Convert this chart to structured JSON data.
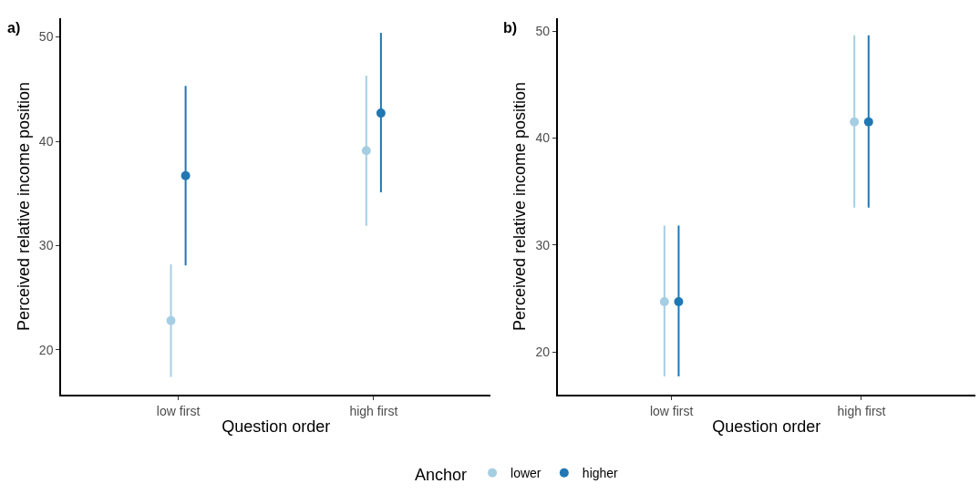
{
  "chart_data": [
    {
      "type": "scatter",
      "title": "a)",
      "xlabel": "Question order",
      "ylabel": "Perceived relative income position",
      "legend_title": "Anchor",
      "categories": [
        "low first",
        "high first"
      ],
      "ylim": [
        15.7,
        51.8
      ],
      "yticks": [
        20,
        30,
        40,
        50
      ],
      "grid": false,
      "legend": "bottom",
      "marker": "circle",
      "series": [
        {
          "name": "lower",
          "color": "#a6cee3",
          "values": [
            22.8,
            39.1
          ],
          "errors": [
            [
              17.4,
              28.2
            ],
            [
              31.9,
              46.3
            ]
          ]
        },
        {
          "name": "higher",
          "color": "#1f78b4",
          "values": [
            36.7,
            42.7
          ],
          "errors": [
            [
              28.1,
              45.3
            ],
            [
              35.1,
              50.4
            ]
          ]
        }
      ]
    },
    {
      "type": "scatter",
      "title": "b)",
      "xlabel": "Question order",
      "ylabel": "Perceived relative income position",
      "categories": [
        "low first",
        "high first"
      ],
      "ylim": [
        16.0,
        51.2
      ],
      "yticks": [
        20,
        30,
        40,
        50
      ],
      "grid": false,
      "legend": "bottom",
      "marker": "circle",
      "series": [
        {
          "name": "lower",
          "color": "#a6cee3",
          "values": [
            24.7,
            41.5
          ],
          "errors": [
            [
              17.7,
              31.8
            ],
            [
              33.5,
              49.6
            ]
          ]
        },
        {
          "name": "higher",
          "color": "#1f78b4",
          "values": [
            24.7,
            41.5
          ],
          "errors": [
            [
              17.7,
              31.8
            ],
            [
              33.5,
              49.6
            ]
          ]
        }
      ]
    }
  ]
}
